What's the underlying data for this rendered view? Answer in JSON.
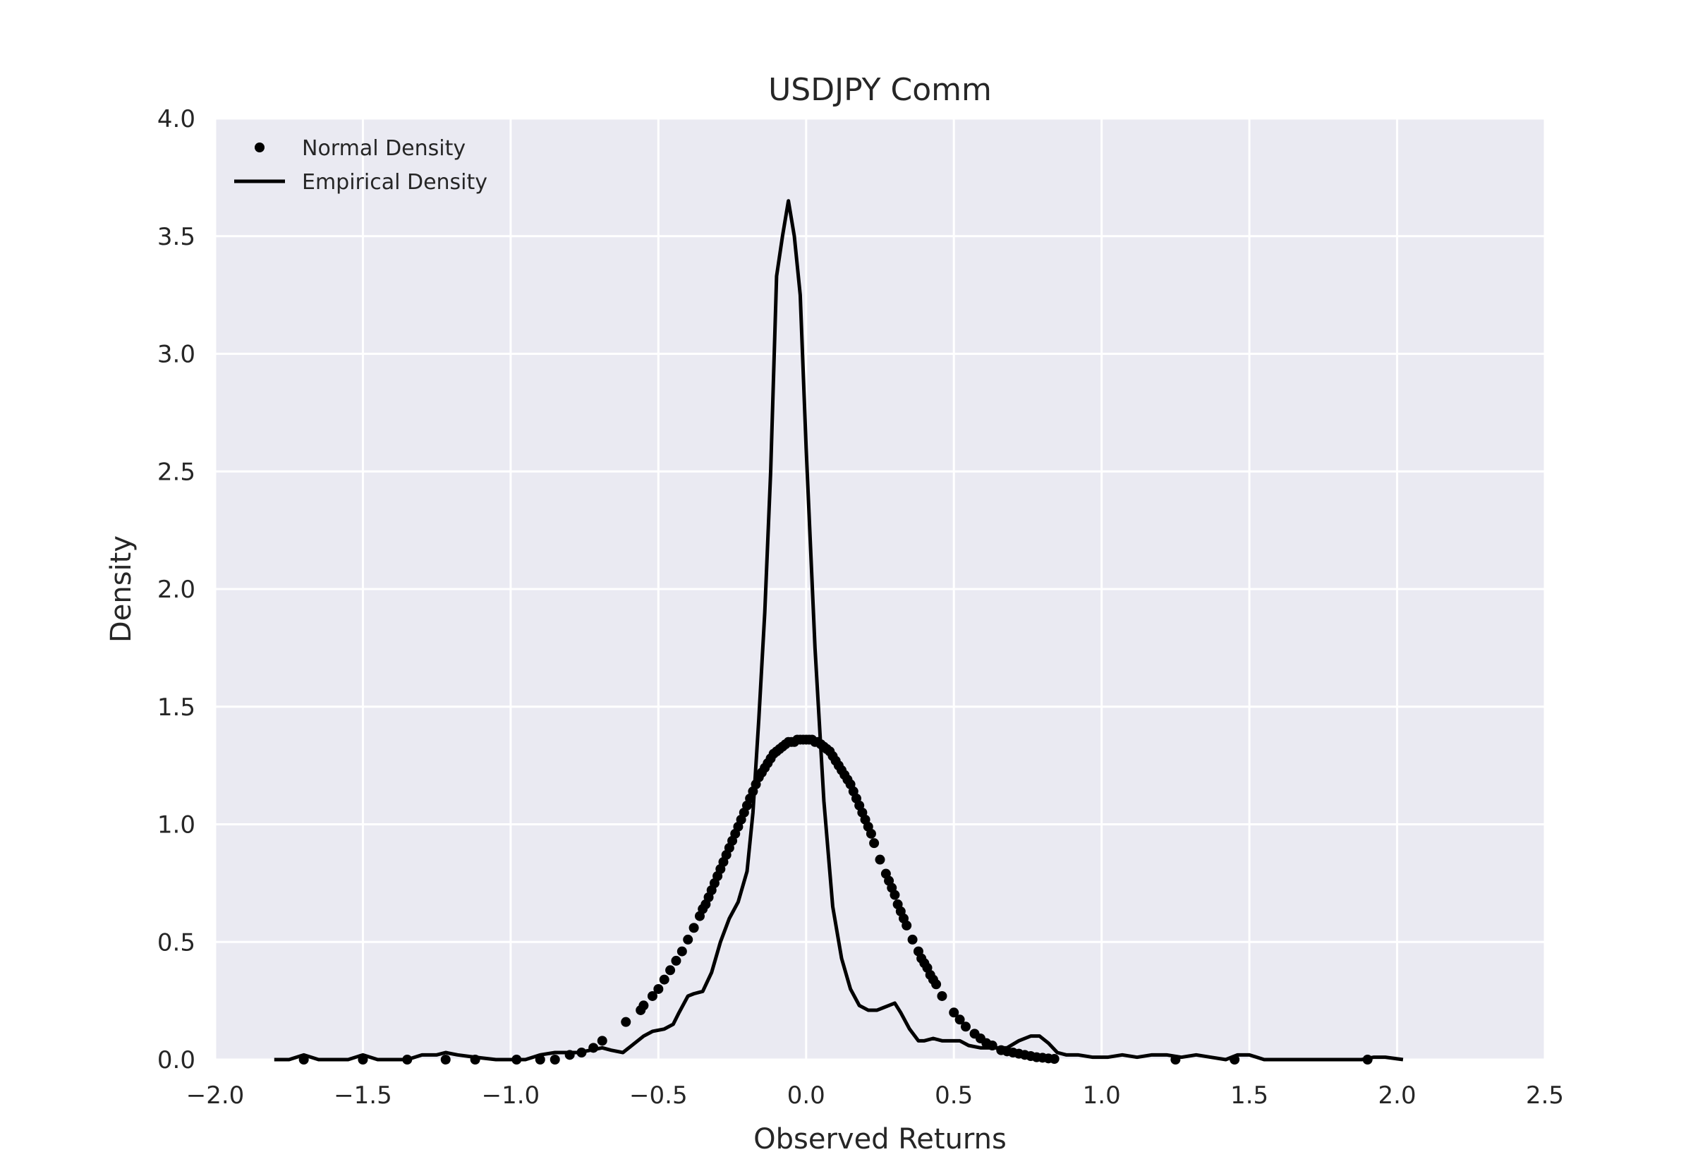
{
  "chart_data": {
    "type": "line",
    "title": "USDJPY Comm",
    "xlabel": "Observed Returns",
    "ylabel": "Density",
    "xlim": [
      -2.0,
      2.5
    ],
    "ylim": [
      0.0,
      4.0
    ],
    "xticks": [
      "−2.0",
      "−1.5",
      "−1.0",
      "−0.5",
      "0.0",
      "0.5",
      "1.0",
      "1.5",
      "2.0",
      "2.5"
    ],
    "xtick_values": [
      -2.0,
      -1.5,
      -1.0,
      -0.5,
      0.0,
      0.5,
      1.0,
      1.5,
      2.0,
      2.5
    ],
    "yticks": [
      "0.0",
      "0.5",
      "1.0",
      "1.5",
      "2.0",
      "2.5",
      "3.0",
      "3.5",
      "4.0"
    ],
    "ytick_values": [
      0.0,
      0.5,
      1.0,
      1.5,
      2.0,
      2.5,
      3.0,
      3.5,
      4.0
    ],
    "grid": true,
    "legend_position": "top-left",
    "colors": {
      "background": "#eaeaf2",
      "grid": "#ffffff",
      "series": "#000000"
    },
    "series": [
      {
        "name": "Normal Density",
        "style": "dots",
        "x": [
          -1.7,
          -1.5,
          -1.35,
          -1.22,
          -1.12,
          -0.98,
          -0.9,
          -0.85,
          -0.8,
          -0.76,
          -0.72,
          -0.69,
          -0.61,
          -0.56,
          -0.55,
          -0.52,
          -0.5,
          -0.48,
          -0.46,
          -0.44,
          -0.42,
          -0.4,
          -0.38,
          -0.36,
          -0.35,
          -0.34,
          -0.33,
          -0.32,
          -0.31,
          -0.3,
          -0.29,
          -0.28,
          -0.27,
          -0.26,
          -0.25,
          -0.24,
          -0.23,
          -0.22,
          -0.21,
          -0.2,
          -0.19,
          -0.18,
          -0.17,
          -0.16,
          -0.15,
          -0.14,
          -0.13,
          -0.12,
          -0.11,
          -0.1,
          -0.09,
          -0.08,
          -0.07,
          -0.06,
          -0.05,
          -0.04,
          -0.03,
          -0.02,
          -0.01,
          0.0,
          0.01,
          0.02,
          0.03,
          0.04,
          0.05,
          0.06,
          0.07,
          0.08,
          0.09,
          0.1,
          0.11,
          0.12,
          0.13,
          0.14,
          0.15,
          0.16,
          0.17,
          0.18,
          0.19,
          0.2,
          0.21,
          0.22,
          0.23,
          0.25,
          0.27,
          0.28,
          0.29,
          0.3,
          0.31,
          0.32,
          0.33,
          0.34,
          0.36,
          0.38,
          0.39,
          0.4,
          0.41,
          0.42,
          0.43,
          0.44,
          0.46,
          0.5,
          0.52,
          0.54,
          0.57,
          0.59,
          0.61,
          0.63,
          0.66,
          0.68,
          0.7,
          0.72,
          0.74,
          0.76,
          0.78,
          0.8,
          0.82,
          0.84,
          1.25,
          1.45,
          1.9
        ],
        "y": [
          0.0,
          0.0,
          0.0,
          0.0,
          0.0,
          0.0,
          0.0,
          0.0,
          0.02,
          0.03,
          0.05,
          0.08,
          0.16,
          0.21,
          0.23,
          0.27,
          0.3,
          0.34,
          0.38,
          0.42,
          0.46,
          0.51,
          0.56,
          0.61,
          0.64,
          0.66,
          0.69,
          0.72,
          0.75,
          0.78,
          0.81,
          0.84,
          0.87,
          0.9,
          0.93,
          0.96,
          0.99,
          1.02,
          1.05,
          1.08,
          1.11,
          1.14,
          1.17,
          1.2,
          1.22,
          1.24,
          1.26,
          1.28,
          1.3,
          1.31,
          1.32,
          1.33,
          1.34,
          1.35,
          1.35,
          1.35,
          1.36,
          1.36,
          1.36,
          1.36,
          1.36,
          1.36,
          1.35,
          1.35,
          1.34,
          1.33,
          1.32,
          1.31,
          1.29,
          1.27,
          1.25,
          1.23,
          1.21,
          1.19,
          1.17,
          1.14,
          1.11,
          1.08,
          1.05,
          1.02,
          0.99,
          0.96,
          0.92,
          0.85,
          0.79,
          0.76,
          0.73,
          0.7,
          0.66,
          0.63,
          0.6,
          0.57,
          0.51,
          0.46,
          0.43,
          0.41,
          0.39,
          0.36,
          0.34,
          0.32,
          0.27,
          0.2,
          0.17,
          0.14,
          0.11,
          0.09,
          0.07,
          0.06,
          0.04,
          0.035,
          0.03,
          0.025,
          0.02,
          0.015,
          0.01,
          0.008,
          0.005,
          0.003,
          0.0,
          0.0,
          0.0
        ]
      },
      {
        "name": "Empirical Density",
        "style": "line",
        "x": [
          -1.8,
          -1.75,
          -1.7,
          -1.65,
          -1.6,
          -1.55,
          -1.5,
          -1.45,
          -1.4,
          -1.35,
          -1.3,
          -1.25,
          -1.22,
          -1.18,
          -1.12,
          -1.05,
          -1.0,
          -0.95,
          -0.9,
          -0.85,
          -0.8,
          -0.77,
          -0.73,
          -0.69,
          -0.66,
          -0.62,
          -0.58,
          -0.55,
          -0.52,
          -0.48,
          -0.45,
          -0.43,
          -0.4,
          -0.38,
          -0.35,
          -0.32,
          -0.29,
          -0.26,
          -0.23,
          -0.2,
          -0.18,
          -0.16,
          -0.14,
          -0.12,
          -0.1,
          -0.08,
          -0.06,
          -0.04,
          -0.02,
          0.0,
          0.03,
          0.06,
          0.09,
          0.12,
          0.15,
          0.18,
          0.21,
          0.24,
          0.26,
          0.28,
          0.3,
          0.32,
          0.35,
          0.38,
          0.4,
          0.43,
          0.46,
          0.49,
          0.52,
          0.55,
          0.59,
          0.63,
          0.68,
          0.72,
          0.76,
          0.79,
          0.82,
          0.85,
          0.88,
          0.92,
          0.97,
          1.02,
          1.07,
          1.12,
          1.17,
          1.22,
          1.27,
          1.32,
          1.37,
          1.42,
          1.46,
          1.5,
          1.55,
          1.65,
          1.75,
          1.85,
          1.88,
          1.92,
          1.96,
          2.02
        ],
        "y": [
          0.0,
          0.0,
          0.02,
          0.0,
          0.0,
          0.0,
          0.02,
          0.0,
          0.0,
          0.0,
          0.02,
          0.02,
          0.03,
          0.02,
          0.01,
          0.0,
          0.0,
          0.0,
          0.02,
          0.03,
          0.03,
          0.03,
          0.04,
          0.05,
          0.04,
          0.03,
          0.07,
          0.1,
          0.12,
          0.13,
          0.15,
          0.2,
          0.27,
          0.28,
          0.29,
          0.37,
          0.5,
          0.6,
          0.67,
          0.8,
          1.05,
          1.45,
          1.9,
          2.5,
          3.33,
          3.5,
          3.65,
          3.5,
          3.25,
          2.6,
          1.75,
          1.1,
          0.65,
          0.43,
          0.3,
          0.23,
          0.21,
          0.21,
          0.22,
          0.23,
          0.24,
          0.2,
          0.13,
          0.08,
          0.08,
          0.09,
          0.08,
          0.08,
          0.08,
          0.06,
          0.05,
          0.05,
          0.05,
          0.08,
          0.1,
          0.1,
          0.07,
          0.03,
          0.02,
          0.02,
          0.01,
          0.01,
          0.02,
          0.01,
          0.02,
          0.02,
          0.01,
          0.02,
          0.01,
          0.0,
          0.02,
          0.02,
          0.0,
          0.0,
          0.0,
          0.0,
          0.0,
          0.01,
          0.01,
          0.0
        ]
      }
    ]
  }
}
